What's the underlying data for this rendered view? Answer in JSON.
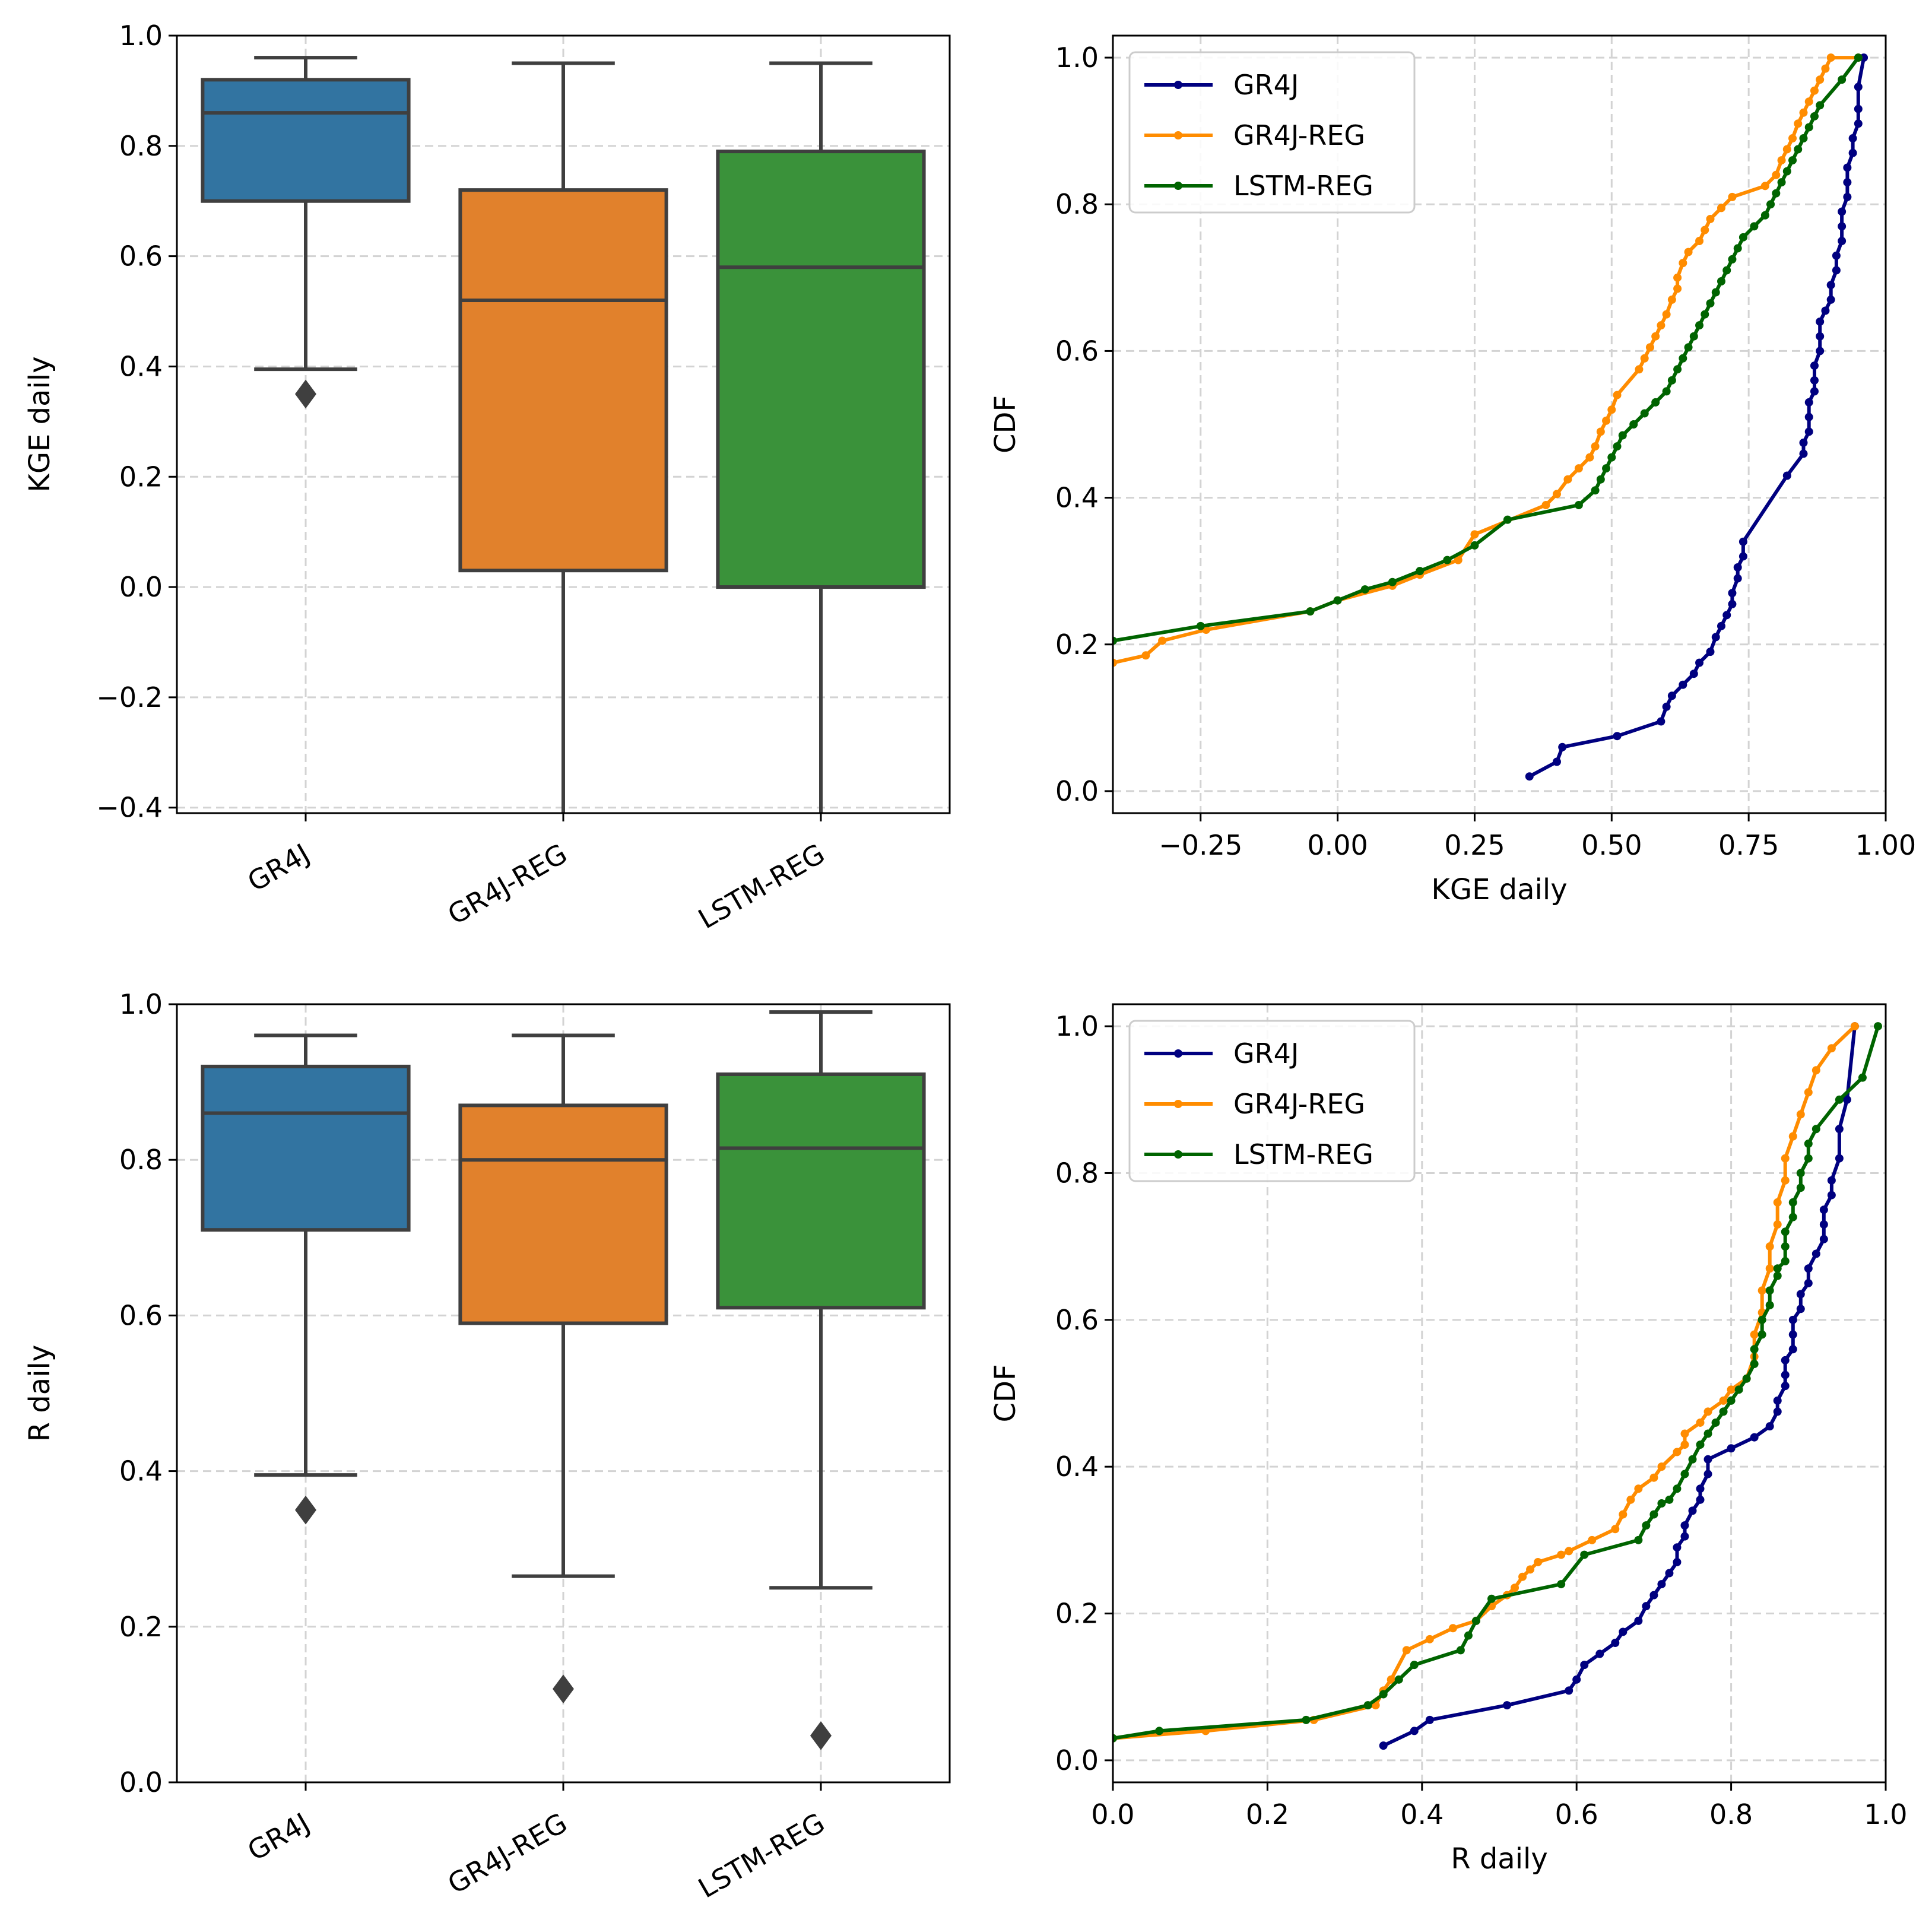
{
  "colors": {
    "GR4J_box": "#3274a1",
    "GR4J_REG_box": "#e1812c",
    "LSTM_REG_box": "#3a923a",
    "box_edge": "#3f3f3f",
    "GR4J_line": "#000080",
    "GR4J_REG_line": "#ff8c00",
    "LSTM_REG_line": "#006400",
    "grid": "#d3d3d3"
  },
  "chart_data": [
    {
      "type": "box",
      "id": "kge-box",
      "ylabel": "KGE daily",
      "ylim": [
        -0.41,
        1.0
      ],
      "yticks": [
        -0.4,
        -0.2,
        0.0,
        0.2,
        0.4,
        0.6,
        0.8,
        1.0
      ],
      "ytick_labels": [
        "−0.4",
        "−0.2",
        "0.0",
        "0.2",
        "0.4",
        "0.6",
        "0.8",
        "1.0"
      ],
      "categories": [
        "GR4J",
        "GR4J-REG",
        "LSTM-REG"
      ],
      "boxes": [
        {
          "name": "GR4J",
          "q1": 0.7,
          "median": 0.86,
          "q3": 0.92,
          "whisker_low": 0.395,
          "whisker_high": 0.96,
          "outliers": [
            0.35
          ]
        },
        {
          "name": "GR4J-REG",
          "q1": 0.03,
          "median": 0.52,
          "q3": 0.72,
          "whisker_low": -0.45,
          "whisker_high": 0.95,
          "outliers": []
        },
        {
          "name": "LSTM-REG",
          "q1": 0.0,
          "median": 0.58,
          "q3": 0.79,
          "whisker_low": -0.45,
          "whisker_high": 0.95,
          "outliers": []
        }
      ],
      "grid": true
    },
    {
      "type": "line",
      "id": "kge-cdf",
      "xlabel": "KGE daily",
      "ylabel": "CDF",
      "xlim": [
        -0.41,
        1.0
      ],
      "ylim": [
        -0.03,
        1.03
      ],
      "xticks": [
        -0.25,
        0.0,
        0.25,
        0.5,
        0.75,
        1.0
      ],
      "xtick_labels": [
        "−0.25",
        "0.00",
        "0.25",
        "0.50",
        "0.75",
        "1.00"
      ],
      "yticks": [
        0.0,
        0.2,
        0.4,
        0.6,
        0.8,
        1.0
      ],
      "ytick_labels": [
        "0.0",
        "0.2",
        "0.4",
        "0.6",
        "0.8",
        "1.0"
      ],
      "grid": true,
      "legend": "upper-left",
      "series": [
        {
          "name": "GR4J",
          "x": [
            0.35,
            0.4,
            0.41,
            0.51,
            0.59,
            0.6,
            0.61,
            0.63,
            0.65,
            0.66,
            0.68,
            0.69,
            0.7,
            0.71,
            0.72,
            0.72,
            0.73,
            0.73,
            0.74,
            0.74,
            0.82,
            0.85,
            0.85,
            0.86,
            0.86,
            0.86,
            0.87,
            0.87,
            0.87,
            0.88,
            0.88,
            0.88,
            0.89,
            0.9,
            0.9,
            0.91,
            0.91,
            0.92,
            0.92,
            0.92,
            0.93,
            0.93,
            0.93,
            0.94,
            0.94,
            0.95,
            0.95,
            0.95,
            0.96
          ],
          "y": [
            0.02,
            0.04,
            0.06,
            0.075,
            0.095,
            0.115,
            0.13,
            0.145,
            0.16,
            0.175,
            0.19,
            0.21,
            0.225,
            0.24,
            0.255,
            0.27,
            0.29,
            0.305,
            0.32,
            0.34,
            0.43,
            0.46,
            0.475,
            0.49,
            0.51,
            0.53,
            0.545,
            0.56,
            0.58,
            0.6,
            0.62,
            0.64,
            0.655,
            0.67,
            0.69,
            0.71,
            0.73,
            0.75,
            0.77,
            0.79,
            0.81,
            0.83,
            0.85,
            0.87,
            0.89,
            0.91,
            0.93,
            0.96,
            1.0
          ]
        },
        {
          "name": "GR4J-REG",
          "x": [
            -0.41,
            -0.35,
            -0.32,
            -0.24,
            -0.05,
            0.0,
            0.1,
            0.15,
            0.22,
            0.25,
            0.38,
            0.4,
            0.42,
            0.44,
            0.46,
            0.47,
            0.48,
            0.49,
            0.5,
            0.51,
            0.55,
            0.56,
            0.57,
            0.58,
            0.59,
            0.6,
            0.61,
            0.62,
            0.62,
            0.63,
            0.64,
            0.66,
            0.67,
            0.68,
            0.7,
            0.72,
            0.78,
            0.8,
            0.81,
            0.82,
            0.83,
            0.84,
            0.85,
            0.86,
            0.87,
            0.88,
            0.89,
            0.9,
            0.95
          ],
          "y": [
            0.175,
            0.185,
            0.205,
            0.22,
            0.245,
            0.26,
            0.28,
            0.295,
            0.315,
            0.35,
            0.39,
            0.405,
            0.425,
            0.44,
            0.455,
            0.47,
            0.49,
            0.505,
            0.52,
            0.54,
            0.575,
            0.59,
            0.605,
            0.62,
            0.635,
            0.65,
            0.67,
            0.685,
            0.7,
            0.72,
            0.735,
            0.75,
            0.765,
            0.78,
            0.795,
            0.81,
            0.825,
            0.84,
            0.86,
            0.875,
            0.89,
            0.91,
            0.925,
            0.94,
            0.955,
            0.97,
            0.985,
            1.0,
            1.0
          ]
        },
        {
          "name": "LSTM-REG",
          "x": [
            -0.41,
            -0.25,
            -0.05,
            0.0,
            0.05,
            0.1,
            0.15,
            0.2,
            0.25,
            0.31,
            0.44,
            0.47,
            0.48,
            0.49,
            0.5,
            0.51,
            0.52,
            0.54,
            0.56,
            0.58,
            0.6,
            0.61,
            0.62,
            0.63,
            0.64,
            0.65,
            0.66,
            0.67,
            0.68,
            0.69,
            0.7,
            0.71,
            0.72,
            0.73,
            0.74,
            0.76,
            0.78,
            0.79,
            0.8,
            0.81,
            0.82,
            0.83,
            0.84,
            0.85,
            0.86,
            0.87,
            0.88,
            0.92,
            0.95
          ],
          "y": [
            0.205,
            0.225,
            0.245,
            0.26,
            0.275,
            0.285,
            0.3,
            0.315,
            0.335,
            0.37,
            0.39,
            0.41,
            0.425,
            0.44,
            0.455,
            0.47,
            0.485,
            0.5,
            0.515,
            0.53,
            0.545,
            0.56,
            0.575,
            0.59,
            0.605,
            0.62,
            0.635,
            0.65,
            0.665,
            0.68,
            0.695,
            0.71,
            0.725,
            0.74,
            0.755,
            0.77,
            0.785,
            0.8,
            0.815,
            0.83,
            0.845,
            0.86,
            0.875,
            0.89,
            0.905,
            0.92,
            0.935,
            0.97,
            1.0
          ]
        }
      ]
    },
    {
      "type": "box",
      "id": "r-box",
      "ylabel": "R daily",
      "ylim": [
        0.0,
        1.0
      ],
      "yticks": [
        0.0,
        0.2,
        0.4,
        0.6,
        0.8,
        1.0
      ],
      "ytick_labels": [
        "0.0",
        "0.2",
        "0.4",
        "0.6",
        "0.8",
        "1.0"
      ],
      "categories": [
        "GR4J",
        "GR4J-REG",
        "LSTM-REG"
      ],
      "boxes": [
        {
          "name": "GR4J",
          "q1": 0.71,
          "median": 0.86,
          "q3": 0.92,
          "whisker_low": 0.395,
          "whisker_high": 0.96,
          "outliers": [
            0.35
          ]
        },
        {
          "name": "GR4J-REG",
          "q1": 0.59,
          "median": 0.8,
          "q3": 0.87,
          "whisker_low": 0.265,
          "whisker_high": 0.96,
          "outliers": [
            0.12
          ]
        },
        {
          "name": "LSTM-REG",
          "q1": 0.61,
          "median": 0.815,
          "q3": 0.91,
          "whisker_low": 0.25,
          "whisker_high": 0.99,
          "outliers": [
            0.06
          ]
        }
      ],
      "grid": true
    },
    {
      "type": "line",
      "id": "r-cdf",
      "xlabel": "R daily",
      "ylabel": "CDF",
      "xlim": [
        0.0,
        1.0
      ],
      "ylim": [
        -0.03,
        1.03
      ],
      "xticks": [
        0.0,
        0.2,
        0.4,
        0.6,
        0.8,
        1.0
      ],
      "xtick_labels": [
        "0.0",
        "0.2",
        "0.4",
        "0.6",
        "0.8",
        "1.0"
      ],
      "yticks": [
        0.0,
        0.2,
        0.4,
        0.6,
        0.8,
        1.0
      ],
      "ytick_labels": [
        "0.0",
        "0.2",
        "0.4",
        "0.6",
        "0.8",
        "1.0"
      ],
      "grid": true,
      "legend": "upper-left",
      "series": [
        {
          "name": "GR4J",
          "x": [
            0.35,
            0.39,
            0.41,
            0.51,
            0.59,
            0.6,
            0.61,
            0.63,
            0.65,
            0.66,
            0.68,
            0.69,
            0.7,
            0.71,
            0.72,
            0.73,
            0.73,
            0.74,
            0.74,
            0.75,
            0.76,
            0.76,
            0.77,
            0.77,
            0.8,
            0.83,
            0.85,
            0.86,
            0.86,
            0.87,
            0.87,
            0.87,
            0.88,
            0.88,
            0.88,
            0.89,
            0.89,
            0.9,
            0.9,
            0.91,
            0.92,
            0.92,
            0.92,
            0.93,
            0.93,
            0.94,
            0.94,
            0.95,
            0.96
          ],
          "y": [
            0.02,
            0.04,
            0.055,
            0.075,
            0.095,
            0.11,
            0.13,
            0.145,
            0.16,
            0.175,
            0.19,
            0.21,
            0.225,
            0.24,
            0.255,
            0.27,
            0.29,
            0.305,
            0.32,
            0.34,
            0.355,
            0.37,
            0.39,
            0.41,
            0.425,
            0.44,
            0.455,
            0.475,
            0.49,
            0.51,
            0.525,
            0.545,
            0.56,
            0.58,
            0.6,
            0.615,
            0.635,
            0.65,
            0.67,
            0.69,
            0.71,
            0.73,
            0.75,
            0.77,
            0.79,
            0.82,
            0.86,
            0.9,
            1.0
          ]
        },
        {
          "name": "GR4J-REG",
          "x": [
            0.0,
            0.12,
            0.26,
            0.34,
            0.35,
            0.36,
            0.38,
            0.41,
            0.44,
            0.47,
            0.49,
            0.51,
            0.52,
            0.53,
            0.54,
            0.55,
            0.58,
            0.59,
            0.62,
            0.65,
            0.66,
            0.67,
            0.68,
            0.7,
            0.71,
            0.73,
            0.74,
            0.74,
            0.76,
            0.77,
            0.79,
            0.8,
            0.82,
            0.83,
            0.83,
            0.84,
            0.84,
            0.85,
            0.85,
            0.86,
            0.86,
            0.87,
            0.87,
            0.88,
            0.89,
            0.9,
            0.91,
            0.93,
            0.96
          ],
          "y": [
            0.03,
            0.04,
            0.055,
            0.075,
            0.095,
            0.11,
            0.15,
            0.165,
            0.18,
            0.19,
            0.21,
            0.225,
            0.235,
            0.25,
            0.26,
            0.27,
            0.28,
            0.285,
            0.3,
            0.315,
            0.335,
            0.355,
            0.37,
            0.385,
            0.4,
            0.42,
            0.43,
            0.445,
            0.46,
            0.475,
            0.49,
            0.505,
            0.52,
            0.55,
            0.58,
            0.61,
            0.64,
            0.67,
            0.7,
            0.73,
            0.76,
            0.79,
            0.82,
            0.85,
            0.88,
            0.91,
            0.94,
            0.97,
            1.0
          ]
        },
        {
          "name": "LSTM-REG",
          "x": [
            0.0,
            0.06,
            0.25,
            0.33,
            0.35,
            0.37,
            0.39,
            0.45,
            0.46,
            0.47,
            0.49,
            0.58,
            0.61,
            0.68,
            0.69,
            0.7,
            0.71,
            0.72,
            0.73,
            0.74,
            0.75,
            0.76,
            0.77,
            0.78,
            0.79,
            0.8,
            0.81,
            0.82,
            0.83,
            0.83,
            0.84,
            0.84,
            0.85,
            0.85,
            0.86,
            0.86,
            0.87,
            0.87,
            0.87,
            0.88,
            0.88,
            0.89,
            0.89,
            0.9,
            0.9,
            0.91,
            0.94,
            0.97,
            0.99
          ],
          "y": [
            0.03,
            0.04,
            0.055,
            0.075,
            0.09,
            0.11,
            0.13,
            0.15,
            0.17,
            0.19,
            0.22,
            0.24,
            0.28,
            0.3,
            0.32,
            0.335,
            0.35,
            0.355,
            0.37,
            0.39,
            0.41,
            0.43,
            0.445,
            0.46,
            0.475,
            0.49,
            0.505,
            0.52,
            0.54,
            0.56,
            0.58,
            0.6,
            0.62,
            0.64,
            0.66,
            0.67,
            0.68,
            0.7,
            0.72,
            0.74,
            0.76,
            0.78,
            0.8,
            0.82,
            0.84,
            0.86,
            0.9,
            0.93,
            1.0
          ]
        }
      ]
    }
  ]
}
